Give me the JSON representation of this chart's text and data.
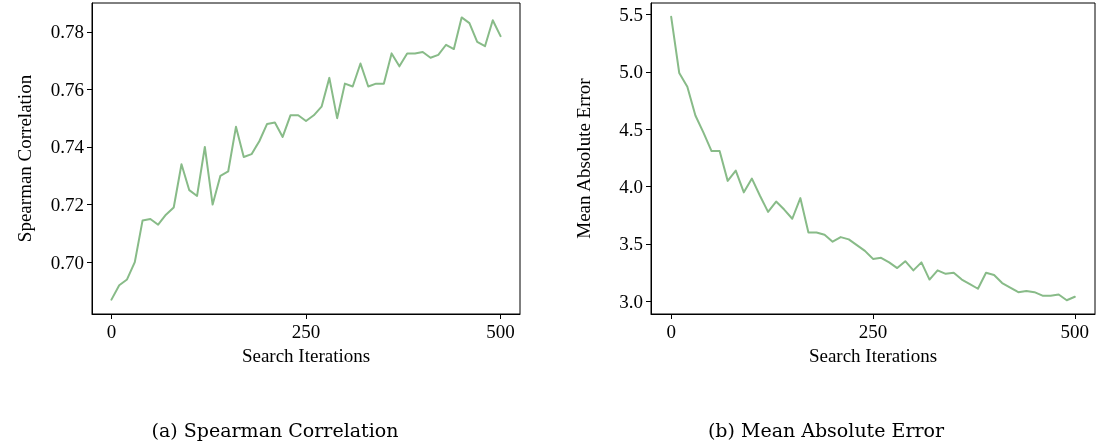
{
  "chart_data": [
    {
      "type": "line",
      "title": "(a) Spearman Correlation",
      "xlabel": "Search Iterations",
      "ylabel": "Spearman Correlation",
      "x": [
        0,
        10,
        20,
        30,
        40,
        50,
        60,
        70,
        80,
        90,
        100,
        110,
        120,
        130,
        140,
        150,
        160,
        170,
        180,
        190,
        200,
        210,
        220,
        230,
        240,
        250,
        260,
        270,
        280,
        290,
        300,
        310,
        320,
        330,
        340,
        350,
        360,
        370,
        380,
        390,
        400,
        410,
        420,
        430,
        440,
        450,
        460,
        470,
        480,
        490,
        500
      ],
      "series": [
        {
          "color": "#88bb88",
          "values": [
            0.687,
            0.692,
            0.694,
            0.7,
            0.7145,
            0.715,
            0.713,
            0.7165,
            0.719,
            0.734,
            0.725,
            0.723,
            0.74,
            0.72,
            0.73,
            0.7315,
            0.747,
            0.7365,
            0.7375,
            0.742,
            0.748,
            0.7485,
            0.7435,
            0.751,
            0.751,
            0.749,
            0.751,
            0.754,
            0.764,
            0.75,
            0.762,
            0.761,
            0.769,
            0.761,
            0.762,
            0.762,
            0.7725,
            0.768,
            0.7725,
            0.7725,
            0.773,
            0.771,
            0.772,
            0.7755,
            0.774,
            0.785,
            0.783,
            0.7765,
            0.775,
            0.784,
            0.7785
          ]
        }
      ],
      "xlim": [
        -25,
        525
      ],
      "xticks": [
        0,
        250,
        500
      ],
      "ylim": [
        0.682,
        0.79
      ],
      "yticks": [
        {
          "value": 0.7,
          "label": "0.70"
        },
        0.72,
        0.74,
        0.76,
        0.78
      ],
      "grid": false,
      "marker": "none",
      "line_style": "solid"
    },
    {
      "type": "line",
      "title": "(b) Mean Absolute Error",
      "xlabel": "Search Iterations",
      "ylabel": "Mean Absolute Error",
      "x": [
        0,
        10,
        20,
        30,
        40,
        50,
        60,
        70,
        80,
        90,
        100,
        110,
        120,
        130,
        140,
        150,
        160,
        170,
        180,
        190,
        200,
        210,
        220,
        230,
        240,
        250,
        260,
        270,
        280,
        290,
        300,
        310,
        320,
        330,
        340,
        350,
        360,
        370,
        380,
        390,
        400,
        410,
        420,
        430,
        440,
        450,
        460,
        470,
        480,
        490,
        500
      ],
      "series": [
        {
          "color": "#88bb88",
          "values": [
            5.48,
            4.99,
            4.87,
            4.62,
            4.47,
            4.31,
            4.31,
            4.05,
            4.14,
            3.95,
            4.07,
            3.92,
            3.78,
            3.87,
            3.8,
            3.72,
            3.9,
            3.6,
            3.6,
            3.58,
            3.52,
            3.56,
            3.54,
            3.49,
            3.44,
            3.37,
            3.38,
            3.34,
            3.29,
            3.35,
            3.27,
            3.34,
            3.19,
            3.27,
            3.24,
            3.25,
            3.19,
            3.15,
            3.11,
            3.25,
            3.23,
            3.16,
            3.12,
            3.08,
            3.09,
            3.08,
            3.05,
            3.05,
            3.06,
            3.01,
            3.04
          ]
        }
      ],
      "xlim": [
        -25,
        525
      ],
      "xticks": [
        0,
        250,
        500
      ],
      "ylim": [
        2.89,
        5.6
      ],
      "yticks": [
        {
          "value": 3,
          "label": "3.0"
        },
        3.5,
        {
          "value": 4,
          "label": "4.0"
        },
        4.5,
        {
          "value": 5,
          "label": "5.0"
        },
        5.5
      ],
      "grid": false,
      "marker": "none",
      "line_style": "solid"
    }
  ]
}
